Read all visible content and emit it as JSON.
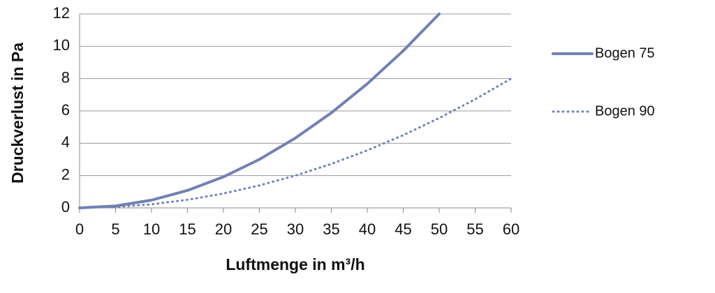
{
  "chart_data": {
    "type": "line",
    "xlabel": "Luftmenge in m³/h",
    "ylabel": "Druckverlust in Pa",
    "xlim": [
      0,
      60
    ],
    "xticks": [
      0,
      5,
      10,
      15,
      20,
      25,
      30,
      35,
      40,
      45,
      50,
      55,
      60
    ],
    "ylim": [
      0,
      12
    ],
    "yticks": [
      0,
      2,
      4,
      6,
      8,
      10,
      12
    ],
    "grid": true,
    "legend": "right",
    "series": [
      {
        "name": "Bogen 75",
        "color": "#7080b8",
        "style": "solid",
        "x": [
          0,
          5,
          10,
          15,
          20,
          25,
          30,
          35,
          40,
          45,
          50
        ],
        "values": [
          0,
          0.12,
          0.48,
          1.08,
          1.92,
          3.0,
          4.32,
          5.88,
          7.68,
          9.72,
          12.0
        ]
      },
      {
        "name": "Bogen 90",
        "color": "#7080b8",
        "style": "dotted",
        "x": [
          0,
          5,
          10,
          15,
          20,
          25,
          30,
          35,
          40,
          45,
          50,
          55,
          60
        ],
        "values": [
          0,
          0.06,
          0.22,
          0.5,
          0.89,
          1.39,
          2.0,
          2.72,
          3.56,
          4.5,
          5.56,
          6.72,
          8.0
        ]
      }
    ]
  }
}
